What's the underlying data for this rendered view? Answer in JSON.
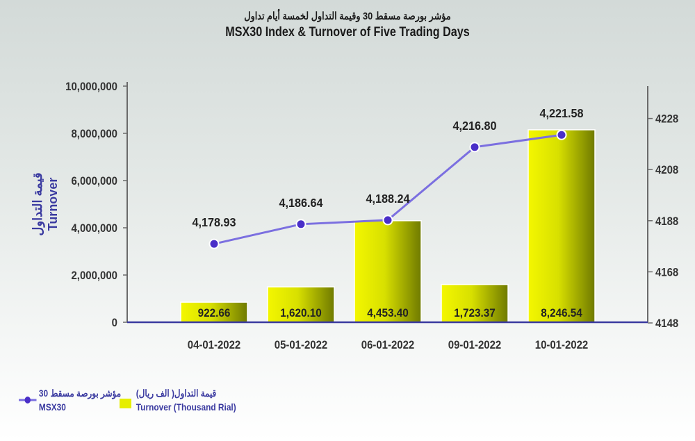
{
  "title_ar": "مؤشر بورصة مسقط 30 وقيمة التداول لخمسة أيام تداول",
  "title_en": "MSX30 Index & Turnover of Five Trading Days",
  "colors": {
    "bar": "#d8e000",
    "line": "#7b6fe0",
    "marker": "#4a2fc8",
    "axis": "#3a3aa0"
  },
  "chart_data": {
    "type": "bar+line",
    "categories": [
      "04-01-2022",
      "05-01-2022",
      "06-01-2022",
      "09-01-2022",
      "10-01-2022"
    ],
    "series": [
      {
        "name": "Turnover (Thousand Rial)",
        "name_ar": "قيمة التداول( الف ريال)",
        "type": "bar",
        "axis": "left",
        "values": [
          922.66,
          1620.1,
          4453.4,
          1723.37,
          8246.54
        ],
        "labels": [
          "922.66",
          "1,620.10",
          "4,453.40",
          "1,723.37",
          "8,246.54"
        ],
        "plotted_values": [
          850000,
          1500000,
          4300000,
          1600000,
          8150000
        ]
      },
      {
        "name": "MSX30",
        "name_ar": "مؤشر بورصة مسقط 30",
        "type": "line",
        "axis": "right",
        "values": [
          4178.93,
          4186.64,
          4188.24,
          4216.8,
          4221.58
        ],
        "labels": [
          "4,178.93",
          "4,186.64",
          "4,188.24",
          "4,216.80",
          "4,221.58"
        ]
      }
    ],
    "left_axis": {
      "label_ar": "قيمة التداول",
      "label": "Turnover",
      "range": [
        0,
        10000000
      ],
      "ticks": [
        "0",
        "2,000,000",
        "4,000,000",
        "6,000,000",
        "8,000,000",
        "10,000,000"
      ]
    },
    "right_axis": {
      "range": [
        4148,
        4228
      ],
      "ticks": [
        "4148",
        "4168",
        "4188",
        "4208",
        "4228"
      ]
    },
    "legend": "bottom-left"
  }
}
